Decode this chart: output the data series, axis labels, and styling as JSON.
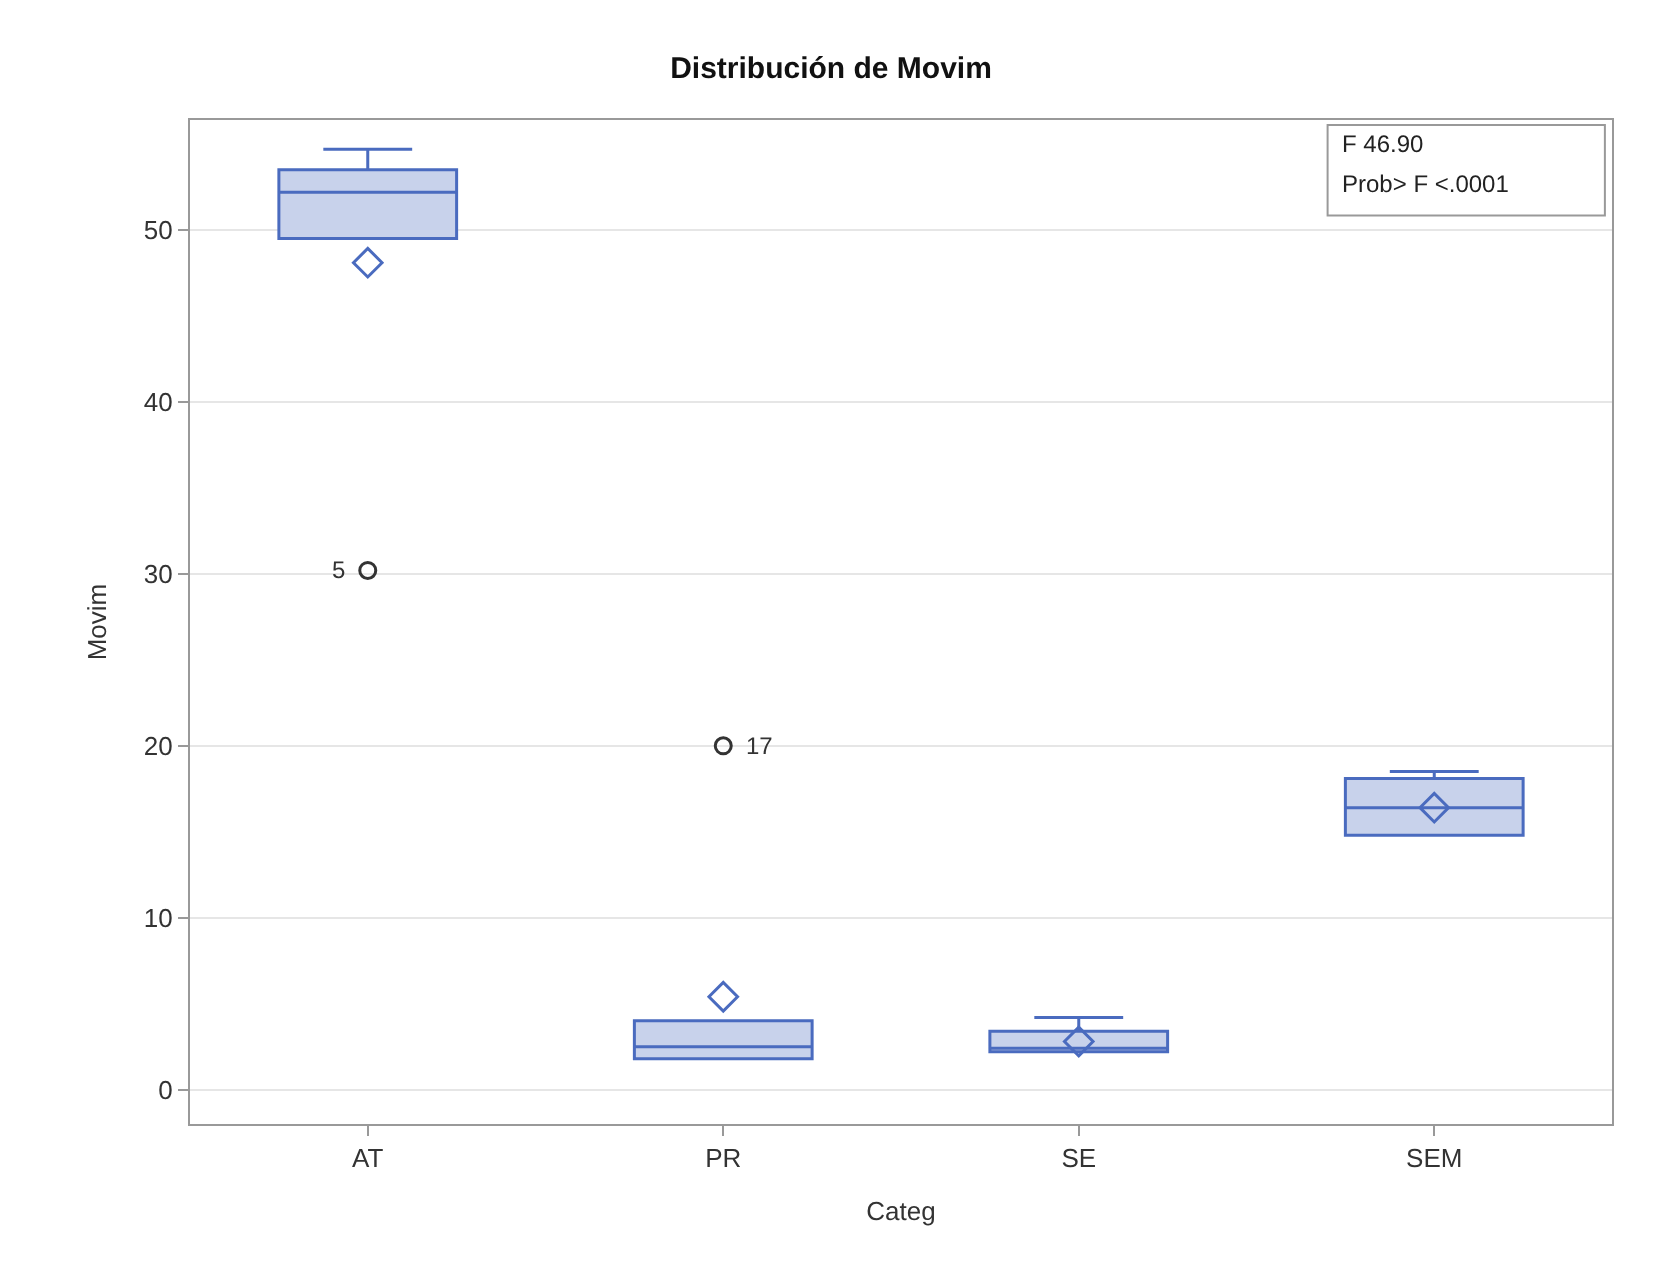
{
  "chart_data": {
    "type": "box",
    "title": "Distribución de Movim",
    "xlabel": "Categ",
    "ylabel": "Movim",
    "categories": [
      "AT",
      "PR",
      "SE",
      "SEM"
    ],
    "boxes": [
      {
        "low": 49.5,
        "q1": 49.5,
        "median": 52.2,
        "q3": 53.5,
        "high": 54.7,
        "mean": 48.1,
        "outliers": [
          30.2
        ]
      },
      {
        "low": 1.8,
        "q1": 1.8,
        "median": 2.5,
        "q3": 4.0,
        "high": 4.0,
        "mean": 5.4,
        "outliers": [
          20.0
        ]
      },
      {
        "low": 2.2,
        "q1": 2.2,
        "median": 2.4,
        "q3": 3.4,
        "high": 4.2,
        "mean": 2.8
      },
      {
        "low": 14.8,
        "q1": 14.8,
        "median": 16.4,
        "q3": 18.1,
        "high": 18.5,
        "mean": 16.4
      }
    ],
    "color": "#4a6bbf",
    "ylim": [
      -2,
      56.4
    ],
    "yticks": [
      0,
      10,
      20,
      30,
      40,
      50
    ],
    "grid": "y",
    "annotations": [
      "5",
      "17",
      "F 46.90",
      "Prob> F <.0001"
    ]
  }
}
